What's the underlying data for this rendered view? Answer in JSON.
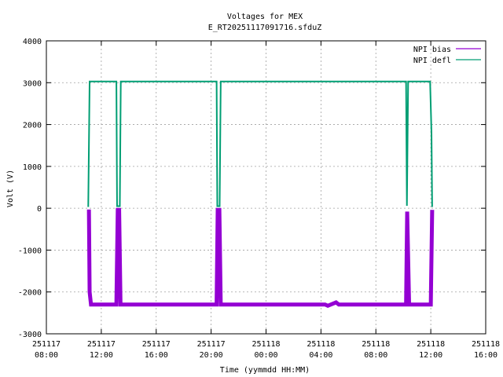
{
  "chart_data": {
    "type": "line",
    "title": "Voltages for MEX",
    "subtitle": "E_RT20251117091716.sfduZ",
    "xlabel": "Time (yymmdd HH:MM)",
    "ylabel": "Volt (V)",
    "ylim": [
      -3000,
      4000
    ],
    "yticks": [
      -3000,
      -2000,
      -1000,
      0,
      1000,
      2000,
      3000,
      4000
    ],
    "xlim_hours": [
      8,
      40
    ],
    "xticks": [
      {
        "hour": 8,
        "date": "251117",
        "time": "08:00"
      },
      {
        "hour": 12,
        "date": "251117",
        "time": "12:00"
      },
      {
        "hour": 16,
        "date": "251117",
        "time": "16:00"
      },
      {
        "hour": 20,
        "date": "251117",
        "time": "20:00"
      },
      {
        "hour": 24,
        "date": "251118",
        "time": "00:00"
      },
      {
        "hour": 28,
        "date": "251118",
        "time": "04:00"
      },
      {
        "hour": 32,
        "date": "251118",
        "time": "08:00"
      },
      {
        "hour": 36,
        "date": "251118",
        "time": "12:00"
      },
      {
        "hour": 40,
        "date": "251118",
        "time": "16:00"
      }
    ],
    "grid": true,
    "legend_position": "top-right",
    "series": [
      {
        "name": "NPI bias",
        "color": "#9400d3",
        "points": [
          [
            11.1,
            -30
          ],
          [
            11.15,
            -2000
          ],
          [
            11.25,
            -2300
          ],
          [
            13.1,
            -2300
          ],
          [
            13.2,
            -40
          ],
          [
            13.3,
            -40
          ],
          [
            13.4,
            -2300
          ],
          [
            20.4,
            -2300
          ],
          [
            20.48,
            -40
          ],
          [
            20.6,
            -40
          ],
          [
            20.7,
            -2300
          ],
          [
            28.3,
            -2300
          ],
          [
            28.5,
            -2330
          ],
          [
            29.1,
            -2250
          ],
          [
            29.3,
            -2300
          ],
          [
            34.2,
            -2300
          ],
          [
            34.28,
            -80
          ],
          [
            34.42,
            -2300
          ],
          [
            36.0,
            -2300
          ],
          [
            36.1,
            -40
          ]
        ]
      },
      {
        "name": "NPI defl",
        "color": "#009e73",
        "points": [
          [
            11.05,
            30
          ],
          [
            11.15,
            3030
          ],
          [
            13.1,
            3030
          ],
          [
            13.15,
            50
          ],
          [
            13.35,
            50
          ],
          [
            13.42,
            3030
          ],
          [
            20.4,
            3030
          ],
          [
            20.45,
            50
          ],
          [
            20.62,
            50
          ],
          [
            20.7,
            3030
          ],
          [
            34.2,
            3030
          ],
          [
            34.26,
            60
          ],
          [
            34.35,
            3030
          ],
          [
            35.95,
            3030
          ],
          [
            36.05,
            1800
          ],
          [
            36.1,
            30
          ]
        ]
      }
    ]
  }
}
